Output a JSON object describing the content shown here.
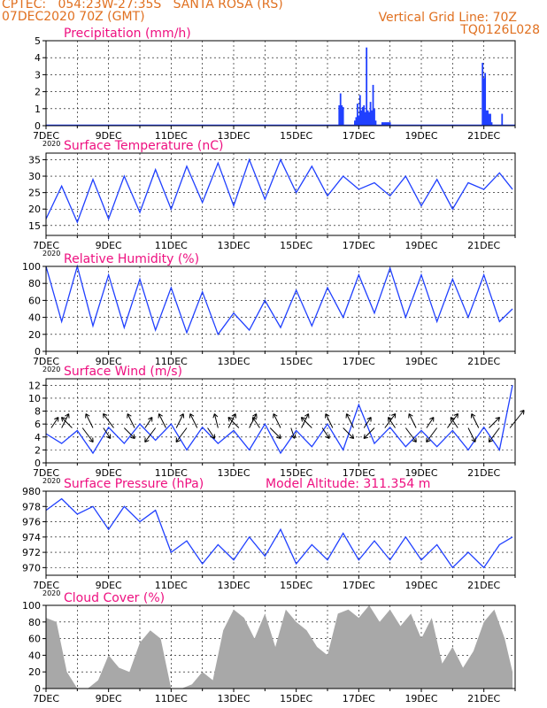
{
  "header": {
    "line1": "CPTEC:   054:23W-27:35S   SANTA ROSA (RS)",
    "line2": "07DEC2020 70Z (GMT)",
    "grid_note": "Vertical Grid Line: 70Z",
    "code": "TQ0126L028"
  },
  "colors": {
    "header": "#e07020",
    "title": "#ee1080",
    "series": "#2040ff",
    "cloud": "#a8a8a8",
    "arrow": "#000000"
  },
  "x_ticks": [
    "7DEC",
    "9DEC",
    "11DEC",
    "13DEC",
    "15DEC",
    "17DEC",
    "19DEC",
    "21DEC"
  ],
  "x_year_label": "2020",
  "chart_data": [
    {
      "type": "bar",
      "title": "Precipitation (mm/h)",
      "ylim": [
        0,
        5
      ],
      "yticks": [
        "0",
        "1",
        "2",
        "3",
        "4",
        "5"
      ],
      "grid": "dashed",
      "x_unit": "hours since 07DEC 00Z",
      "x": [
        225,
        226,
        227,
        228,
        237,
        238,
        239,
        240,
        241,
        242,
        243,
        244,
        245,
        246,
        247,
        248,
        249,
        250,
        251,
        252,
        253,
        258,
        259,
        260,
        261,
        262,
        263,
        264,
        335,
        336,
        337,
        338,
        339,
        340,
        341,
        342,
        350
      ],
      "values": [
        1.2,
        1.9,
        1.2,
        1.1,
        0.3,
        0.5,
        1.3,
        0.6,
        1.8,
        0.9,
        1.1,
        1.2,
        0.8,
        4.6,
        0.9,
        0.8,
        1.4,
        0.9,
        2.4,
        1.0,
        0.3,
        0.2,
        0.2,
        0.2,
        0.2,
        0.2,
        0.2,
        0.2,
        3.7,
        2.8,
        3.1,
        0.9,
        0.9,
        0.7,
        0.7,
        0.2,
        0.7
      ]
    },
    {
      "type": "line",
      "title": "Surface Temperature (nC)",
      "ylim": [
        12,
        37
      ],
      "yticks": [
        "15",
        "20",
        "25",
        "30",
        "35"
      ],
      "grid": "dashed",
      "x": [
        0,
        12,
        24,
        36,
        48,
        60,
        72,
        84,
        96,
        108,
        120,
        132,
        144,
        156,
        168,
        180,
        192,
        204,
        216,
        228,
        240,
        252,
        264,
        276,
        288,
        300,
        312,
        324,
        336,
        348,
        358
      ],
      "values": [
        17,
        27,
        16,
        29,
        17,
        30,
        19,
        32,
        20,
        33,
        22,
        34,
        21,
        35,
        23,
        35,
        25,
        33,
        24,
        30,
        26,
        28,
        24,
        30,
        21,
        29,
        20,
        28,
        26,
        31,
        26
      ]
    },
    {
      "type": "line",
      "title": "Relative Humidity (%)",
      "ylim": [
        0,
        100
      ],
      "yticks": [
        "0",
        "20",
        "40",
        "60",
        "80",
        "100"
      ],
      "grid": "dashed",
      "x": [
        0,
        12,
        24,
        36,
        48,
        60,
        72,
        84,
        96,
        108,
        120,
        132,
        144,
        156,
        168,
        180,
        192,
        204,
        216,
        228,
        240,
        252,
        264,
        276,
        288,
        300,
        312,
        324,
        336,
        348,
        358
      ],
      "values": [
        100,
        35,
        100,
        30,
        90,
        28,
        85,
        25,
        75,
        22,
        70,
        20,
        45,
        25,
        60,
        28,
        72,
        30,
        75,
        40,
        90,
        45,
        98,
        40,
        90,
        35,
        85,
        40,
        90,
        35,
        50
      ]
    },
    {
      "type": "line",
      "title": "Surface Wind (m/s)",
      "ylim": [
        0,
        13
      ],
      "yticks": [
        "0",
        "2",
        "4",
        "6",
        "8",
        "10",
        "12"
      ],
      "grid": "dashed",
      "x": [
        0,
        12,
        24,
        36,
        48,
        60,
        72,
        84,
        96,
        108,
        120,
        132,
        144,
        156,
        168,
        180,
        192,
        204,
        216,
        228,
        240,
        252,
        264,
        276,
        288,
        300,
        312,
        324,
        336,
        348,
        358
      ],
      "values": [
        4.5,
        3,
        5,
        1.5,
        5.5,
        3,
        6,
        3.5,
        6,
        2,
        5.5,
        3,
        5,
        2,
        6,
        1.5,
        5,
        2.5,
        6,
        2,
        9,
        3,
        5.5,
        2.5,
        5,
        2.5,
        5,
        2,
        5.5,
        2,
        12
      ],
      "wind_arrows": {
        "x": [
          4,
          12,
          20,
          28,
          36,
          44,
          52,
          60,
          68,
          76,
          84,
          92,
          100,
          108,
          116,
          124,
          132,
          140,
          148,
          156,
          164,
          172,
          180,
          188,
          196,
          204,
          212,
          220,
          228,
          236,
          244,
          252,
          260,
          268,
          276,
          284,
          292,
          300,
          308,
          316,
          324,
          332,
          340,
          348,
          356
        ],
        "u": [
          2,
          2,
          -3,
          3,
          -2,
          2,
          -3,
          3,
          -2,
          2,
          -3,
          -2,
          2,
          -3,
          -2,
          2,
          -1,
          2,
          -3,
          2,
          -2,
          3,
          -2,
          1,
          2,
          -3,
          2,
          -2,
          3,
          -2,
          2,
          -3,
          3,
          -2,
          3,
          -2,
          2,
          -3,
          3,
          -2,
          2,
          -2,
          3,
          -3,
          4
        ],
        "v": [
          3,
          4,
          3,
          -4,
          4,
          -3,
          4,
          -3,
          4,
          3,
          -4,
          4,
          4,
          -4,
          4,
          -3,
          4,
          4,
          3,
          4,
          3,
          -3,
          4,
          -3,
          4,
          3,
          -3,
          4,
          -3,
          4,
          3,
          -3,
          4,
          3,
          -4,
          4,
          3,
          -4,
          4,
          3,
          -4,
          4,
          3,
          -4,
          5
        ]
      }
    },
    {
      "type": "line",
      "title": "Surface Pressure (hPa)",
      "annotation": "Model Altitude: 311.354 m",
      "ylim": [
        969,
        980
      ],
      "yticks": [
        "970",
        "972",
        "974",
        "976",
        "978",
        "980"
      ],
      "grid": "dashed",
      "x": [
        0,
        12,
        24,
        36,
        48,
        60,
        72,
        84,
        96,
        108,
        120,
        132,
        144,
        156,
        168,
        180,
        192,
        204,
        216,
        228,
        240,
        252,
        264,
        276,
        288,
        300,
        312,
        324,
        336,
        348,
        358
      ],
      "values": [
        977.5,
        979,
        977,
        978,
        975,
        978,
        976,
        977.5,
        972,
        973.5,
        970.5,
        973,
        971,
        974,
        971.5,
        975,
        970.5,
        973,
        971,
        974.5,
        971,
        973.5,
        971,
        974,
        971,
        973,
        970,
        972,
        970,
        973,
        974
      ]
    },
    {
      "type": "area",
      "title": "Cloud Cover (%)",
      "ylim": [
        0,
        100
      ],
      "yticks": [
        "0",
        "20",
        "40",
        "60",
        "80",
        "100"
      ],
      "grid": "dashed",
      "x": [
        0,
        8,
        16,
        24,
        32,
        40,
        48,
        56,
        64,
        72,
        80,
        88,
        96,
        104,
        112,
        120,
        128,
        136,
        144,
        152,
        160,
        168,
        176,
        184,
        192,
        200,
        208,
        216,
        224,
        232,
        240,
        248,
        256,
        264,
        272,
        280,
        288,
        296,
        304,
        312,
        320,
        328,
        336,
        344,
        352,
        358
      ],
      "values": [
        85,
        80,
        20,
        0,
        0,
        10,
        40,
        25,
        20,
        55,
        70,
        60,
        0,
        0,
        5,
        20,
        10,
        70,
        95,
        85,
        60,
        90,
        50,
        95,
        80,
        70,
        50,
        40,
        90,
        95,
        85,
        100,
        80,
        95,
        75,
        90,
        60,
        85,
        30,
        50,
        25,
        45,
        80,
        95,
        60,
        20
      ]
    }
  ]
}
